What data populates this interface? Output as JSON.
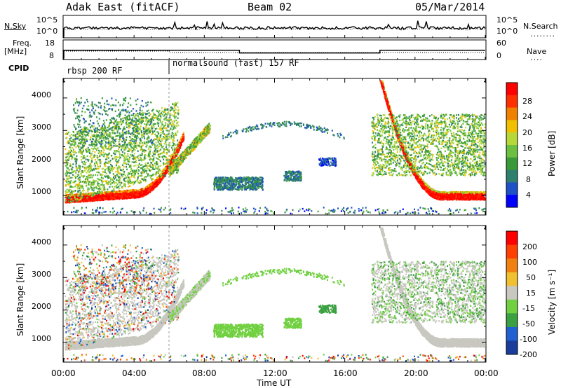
{
  "header": {
    "title": "Adak East (fitACF)",
    "beam": "Beam 02",
    "date": "05/Mar/2014"
  },
  "top_panels": {
    "nsky_label": "N.Sky",
    "nsearch_label": "N.Search",
    "freq_label_line1": "Freq.",
    "freq_label_line2": "[MHz]",
    "nave_label": "Nave",
    "cpid_label": "CPID",
    "nsky_ticks": [
      "10^5",
      "10^0"
    ],
    "nsearch_ticks": [
      "10^5",
      "10^0"
    ],
    "freq_ticks": [
      "18",
      "8"
    ],
    "nave_ticks": [
      "60",
      "0"
    ],
    "cpid_segments": [
      "rbsp 200 RF",
      "normalsound (fast) 157 RF"
    ]
  },
  "colors": {
    "power_scale": [
      "#0000ff",
      "#1e50c8",
      "#2e7f6e",
      "#3a9a3a",
      "#6cc040",
      "#b8d83a",
      "#f0c000",
      "#f08000",
      "#ff3000",
      "#ff0000"
    ],
    "velocity_scale": [
      "#1a3c9a",
      "#2060d0",
      "#3aa040",
      "#70d040",
      "#c8c8c0",
      "#f0c030",
      "#f08010",
      "#ff4000",
      "#ff0000"
    ],
    "ground_scatter": "#c8c8c0"
  },
  "chart_data": [
    {
      "type": "heatmap",
      "name": "power",
      "ylabel": "Slant Range [km]",
      "yticks": [
        "4000",
        "3000",
        "2000",
        "1000"
      ],
      "ylim": [
        400,
        4600
      ],
      "colorbar_label": "Power [dB]",
      "colorbar_ticks": [
        "28",
        "24",
        "20",
        "16",
        "12",
        "8",
        "4"
      ],
      "clim": [
        0,
        32
      ]
    },
    {
      "type": "heatmap",
      "name": "velocity",
      "ylabel": "Slant Range [km]",
      "yticks": [
        "4000",
        "3000",
        "2000",
        "1000"
      ],
      "ylim": [
        400,
        4600
      ],
      "colorbar_label": "Velocity [m s⁻¹]",
      "colorbar_ticks": [
        "200",
        "100",
        "50",
        "15",
        "-15",
        "-50",
        "-100",
        "-200"
      ]
    }
  ],
  "x_axis": {
    "label": "Time UT",
    "ticks": [
      "00:00",
      "04:00",
      "08:00",
      "12:00",
      "16:00",
      "20:00",
      "00:00"
    ],
    "xlim_hours": [
      0,
      24
    ]
  }
}
